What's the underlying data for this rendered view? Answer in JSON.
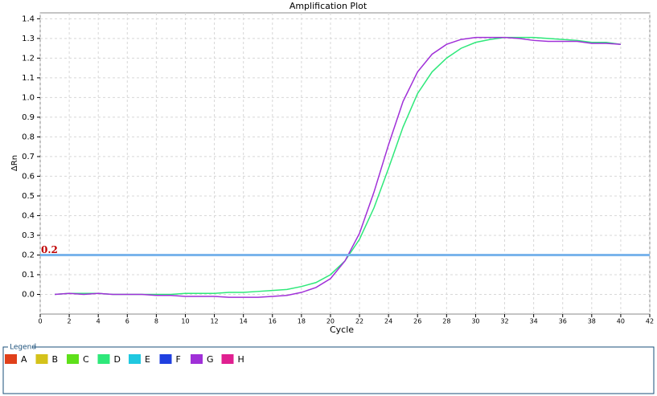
{
  "chart_data": {
    "type": "line",
    "title": "Amplification Plot",
    "x_label": "Cycle",
    "y_label": "ΔRn",
    "x": [
      1,
      2,
      3,
      4,
      5,
      6,
      7,
      8,
      9,
      10,
      11,
      12,
      13,
      14,
      15,
      16,
      17,
      18,
      19,
      20,
      21,
      22,
      23,
      24,
      25,
      26,
      27,
      28,
      29,
      30,
      31,
      32,
      33,
      34,
      35,
      36,
      37,
      38,
      39,
      40
    ],
    "series": [
      {
        "name": "A",
        "color": "#e0401a",
        "values": [
          null,
          null,
          null,
          null,
          null,
          null,
          null,
          null,
          null,
          null,
          null,
          null,
          null,
          null,
          null,
          null,
          null,
          null,
          null,
          null,
          null,
          null,
          null,
          null,
          null,
          null,
          null,
          null,
          null,
          null,
          null,
          null,
          null,
          null,
          null,
          null,
          null,
          null,
          null,
          null
        ]
      },
      {
        "name": "B",
        "color": "#d4c21a",
        "values": [
          null,
          null,
          null,
          null,
          null,
          null,
          null,
          null,
          null,
          null,
          null,
          null,
          null,
          null,
          null,
          null,
          null,
          null,
          null,
          null,
          null,
          null,
          null,
          null,
          null,
          null,
          null,
          null,
          null,
          null,
          null,
          null,
          null,
          null,
          null,
          null,
          null,
          null,
          null,
          null
        ]
      },
      {
        "name": "C",
        "color": "#5ee01a",
        "values": [
          null,
          null,
          null,
          null,
          null,
          null,
          null,
          null,
          null,
          null,
          null,
          null,
          null,
          null,
          null,
          null,
          null,
          null,
          null,
          null,
          null,
          null,
          null,
          null,
          null,
          null,
          null,
          null,
          null,
          null,
          null,
          null,
          null,
          null,
          null,
          null,
          null,
          null,
          null,
          null
        ]
      },
      {
        "name": "D",
        "color": "#2ee87a",
        "values": [
          0.0,
          0.005,
          0.005,
          0.005,
          0.0,
          0.0,
          0.0,
          0.0,
          0.0,
          0.005,
          0.005,
          0.005,
          0.01,
          0.01,
          0.015,
          0.02,
          0.025,
          0.04,
          0.06,
          0.1,
          0.17,
          0.28,
          0.44,
          0.64,
          0.85,
          1.02,
          1.13,
          1.2,
          1.25,
          1.28,
          1.295,
          1.305,
          1.305,
          1.305,
          1.3,
          1.295,
          1.29,
          1.28,
          1.28,
          1.27
        ]
      },
      {
        "name": "E",
        "color": "#20c8e0",
        "values": [
          null,
          null,
          null,
          null,
          null,
          null,
          null,
          null,
          null,
          null,
          null,
          null,
          null,
          null,
          null,
          null,
          null,
          null,
          null,
          null,
          null,
          null,
          null,
          null,
          null,
          null,
          null,
          null,
          null,
          null,
          null,
          null,
          null,
          null,
          null,
          null,
          null,
          null,
          null,
          null
        ]
      },
      {
        "name": "F",
        "color": "#2040e0",
        "values": [
          null,
          null,
          null,
          null,
          null,
          null,
          null,
          null,
          null,
          null,
          null,
          null,
          null,
          null,
          null,
          null,
          null,
          null,
          null,
          null,
          null,
          null,
          null,
          null,
          null,
          null,
          null,
          null,
          null,
          null,
          null,
          null,
          null,
          null,
          null,
          null,
          null,
          null,
          null,
          null
        ]
      },
      {
        "name": "G",
        "color": "#a030d8",
        "values": [
          0.0,
          0.005,
          0.0,
          0.005,
          0.0,
          0.0,
          0.0,
          -0.005,
          -0.005,
          -0.01,
          -0.01,
          -0.01,
          -0.015,
          -0.015,
          -0.015,
          -0.01,
          -0.005,
          0.01,
          0.035,
          0.08,
          0.17,
          0.31,
          0.52,
          0.76,
          0.98,
          1.13,
          1.22,
          1.27,
          1.295,
          1.305,
          1.305,
          1.305,
          1.3,
          1.29,
          1.285,
          1.285,
          1.285,
          1.275,
          1.275,
          1.27
        ]
      },
      {
        "name": "H",
        "color": "#e02090",
        "values": [
          null,
          null,
          null,
          null,
          null,
          null,
          null,
          null,
          null,
          null,
          null,
          null,
          null,
          null,
          null,
          null,
          null,
          null,
          null,
          null,
          null,
          null,
          null,
          null,
          null,
          null,
          null,
          null,
          null,
          null,
          null,
          null,
          null,
          null,
          null,
          null,
          null,
          null,
          null,
          null
        ]
      }
    ],
    "threshold": 0.2,
    "threshold_color": "#7ab4ec",
    "xlim": [
      0,
      42
    ],
    "xticks": [
      0,
      2,
      4,
      6,
      8,
      10,
      12,
      14,
      16,
      18,
      20,
      22,
      24,
      26,
      28,
      30,
      32,
      34,
      36,
      38,
      40,
      42
    ],
    "ylim": [
      -0.1,
      1.43
    ],
    "yticks": [
      {
        "value": 0,
        "label": "0.0"
      },
      0.1,
      0.2,
      0.3,
      0.4,
      0.5,
      0.6,
      0.7,
      0.8,
      0.9,
      {
        "value": 1,
        "label": "1.0"
      },
      1.1,
      1.2,
      1.3,
      1.4
    ],
    "grid": true,
    "legend_title": "Legend"
  }
}
